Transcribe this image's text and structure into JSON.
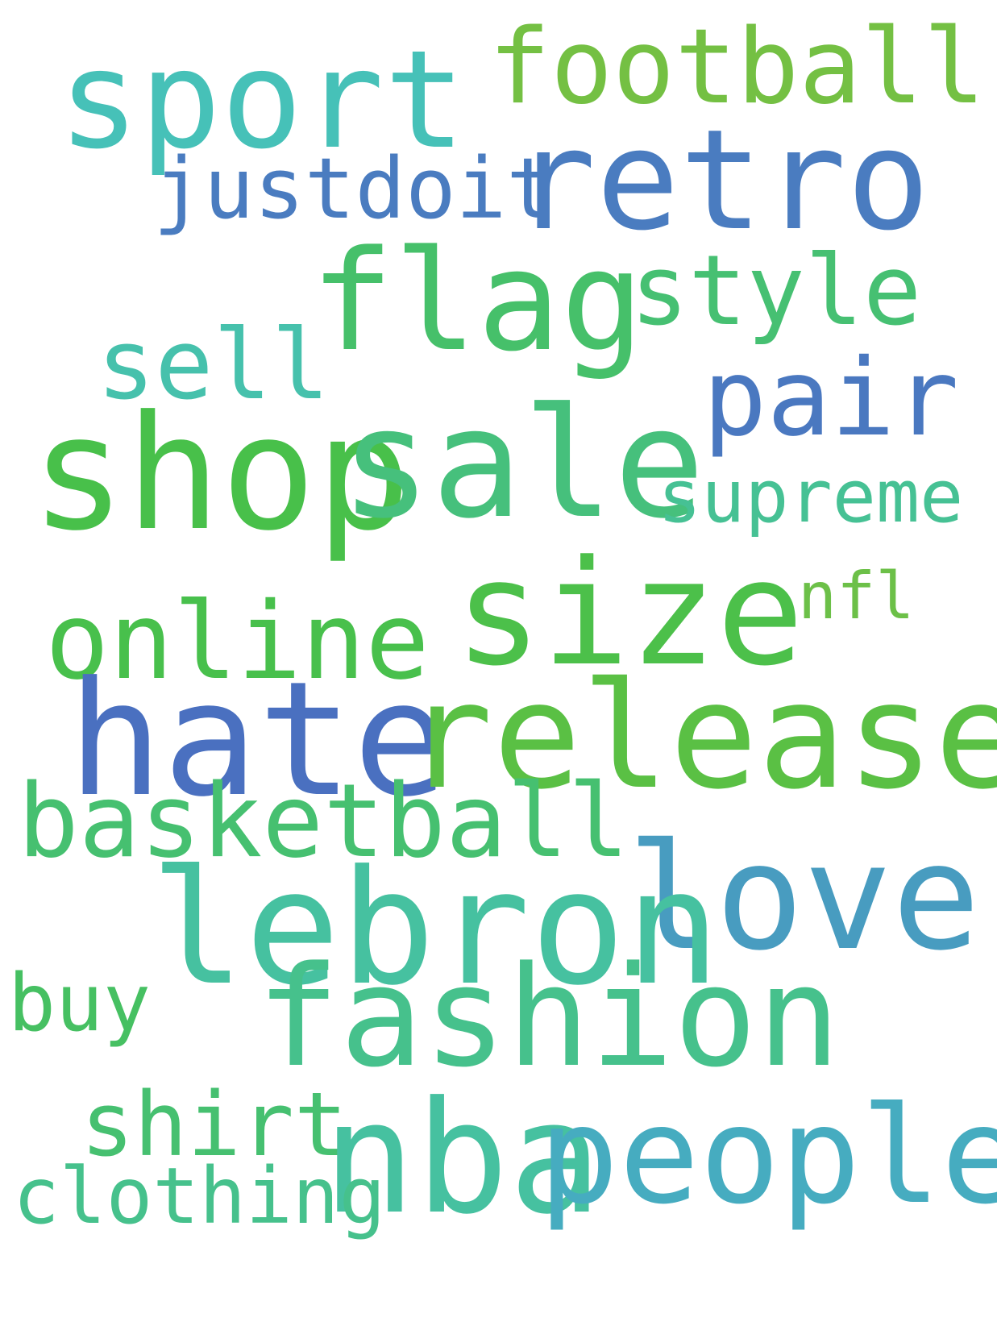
{
  "words": [
    {
      "text": "sport",
      "color": "#46c1b8"
    },
    {
      "text": "football",
      "color": "#74c043"
    },
    {
      "text": "retro",
      "color": "#4a7cc0"
    },
    {
      "text": "justdoit",
      "color": "#4a7cc0"
    },
    {
      "text": "flag",
      "color": "#46c06a"
    },
    {
      "text": "style",
      "color": "#46c072"
    },
    {
      "text": "sell",
      "color": "#46c1ac"
    },
    {
      "text": "pair",
      "color": "#4a78c0"
    },
    {
      "text": "shop",
      "color": "#48c04a"
    },
    {
      "text": "sale",
      "color": "#46c07c"
    },
    {
      "text": "supreme",
      "color": "#46c194"
    },
    {
      "text": "size",
      "color": "#4cc04a"
    },
    {
      "text": "nfl",
      "color": "#6cc048"
    },
    {
      "text": "online",
      "color": "#48c04c"
    },
    {
      "text": "hate",
      "color": "#4a70c0"
    },
    {
      "text": "release",
      "color": "#5ac044"
    },
    {
      "text": "basketball",
      "color": "#46c070"
    },
    {
      "text": "love",
      "color": "#489cc0"
    },
    {
      "text": "lebron",
      "color": "#46c1a0"
    },
    {
      "text": "buy",
      "color": "#46c062"
    },
    {
      "text": "fashion",
      "color": "#46c18c"
    },
    {
      "text": "shirt",
      "color": "#46c070"
    },
    {
      "text": "nba",
      "color": "#46c1a0"
    },
    {
      "text": "people",
      "color": "#46acc0"
    },
    {
      "text": "clothing",
      "color": "#46c18c"
    }
  ]
}
